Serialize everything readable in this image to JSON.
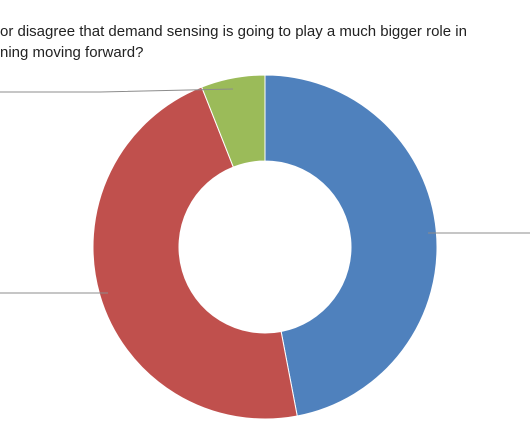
{
  "chart_data": {
    "type": "donut",
    "title": [
      "or disagree that demand sensing is going to play a much bigger role in",
      "ning moving forward?"
    ],
    "values": [
      47,
      47,
      6
    ],
    "colors": [
      "#4f81bd",
      "#c0504d",
      "#9bbb59"
    ]
  }
}
